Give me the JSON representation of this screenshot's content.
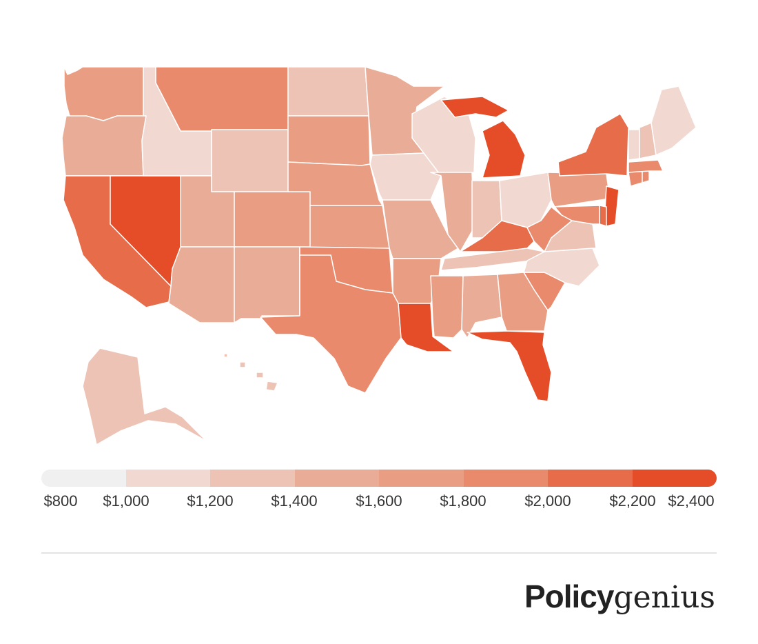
{
  "chart_data": {
    "type": "choropleth",
    "region": "United States",
    "color_scale": {
      "breaks": [
        "$800",
        "$1,000",
        "$1,200",
        "$1,400",
        "$1,600",
        "$1,800",
        "$2,000",
        "$2,200",
        "$2,400"
      ],
      "colors": [
        "#f0f0f0",
        "#f1d9d1",
        "#ecc3b5",
        "#e9ac97",
        "#e99d83",
        "#e98a6c",
        "#e76c4a",
        "#e44d27"
      ]
    },
    "states": {
      "WA": 4,
      "OR": 3,
      "CA": 6,
      "NV": 7,
      "ID": 1,
      "MT": 5,
      "WY": 2,
      "UT": 3,
      "AZ": 3,
      "CO": 4,
      "NM": 3,
      "ND": 2,
      "SD": 4,
      "NE": 4,
      "KS": 4,
      "OK": 5,
      "TX": 5,
      "MN": 3,
      "IA": 1,
      "MO": 3,
      "AR": 4,
      "LA": 7,
      "WI": 1,
      "IL": 3,
      "IN": 2,
      "OH": 1,
      "MI": 7,
      "KY": 6,
      "TN": 2,
      "MS": 4,
      "AL": 3,
      "GA": 4,
      "FL": 7,
      "SC": 5,
      "NC": 1,
      "VA": 2,
      "WV": 5,
      "PA": 4,
      "NY": 6,
      "NJ": 7,
      "DE": 6,
      "MD": 5,
      "CT": 5,
      "RI": 5,
      "MA": 5,
      "VT": 1,
      "NH": 2,
      "ME": 1,
      "AK": 2,
      "HI": 2
    }
  },
  "brand": {
    "logo_bold": "Policy",
    "logo_light": "genius"
  }
}
